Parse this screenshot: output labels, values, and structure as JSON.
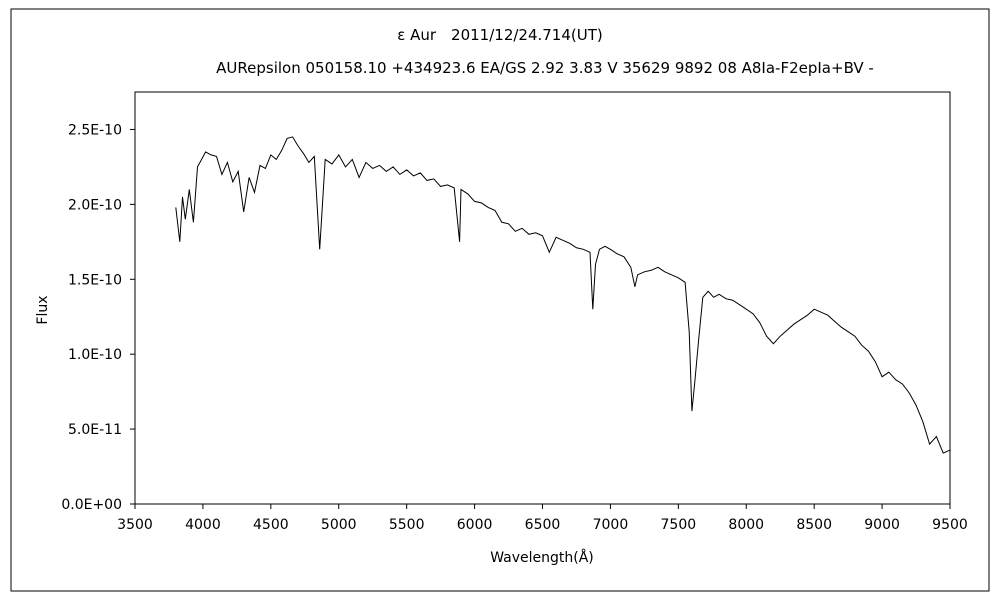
{
  "chart_data": {
    "type": "line",
    "title": "ε Aur　2011/12/24.714(UT)",
    "subtitle": "AURepsilon 050158.10 +434923.6 EA/GS 2.92 3.83 V 35629 9892 08 A8Ia-F2epIa+BV -",
    "xlabel": "Wavelength(Å)",
    "ylabel": "Flux",
    "xlim": [
      3500,
      9500
    ],
    "ylim": [
      0,
      2.75e-10
    ],
    "x_ticks": [
      3500,
      4000,
      4500,
      5000,
      5500,
      6000,
      6500,
      7000,
      7500,
      8000,
      8500,
      9000,
      9500
    ],
    "x_tick_labels": [
      "3500",
      "4000",
      "4500",
      "5000",
      "5500",
      "6000",
      "6500",
      "7000",
      "7500",
      "8000",
      "8500",
      "9000",
      "9500"
    ],
    "y_ticks": [
      0,
      5e-11,
      1e-10,
      1.5e-10,
      2e-10,
      2.5e-10
    ],
    "y_tick_labels": [
      "0.0E+00",
      "5.0E-11",
      "1.0E-10",
      "1.5E-10",
      "2.0E-10",
      "2.5E-10"
    ],
    "grid": false,
    "line_color": "#000000",
    "series": [
      {
        "x": [
          3800,
          3830,
          3850,
          3870,
          3900,
          3930,
          3960,
          3990,
          4020,
          4060,
          4100,
          4140,
          4180,
          4220,
          4260,
          4300,
          4340,
          4380,
          4420,
          4460,
          4500,
          4540,
          4580,
          4620,
          4660,
          4700,
          4740,
          4780,
          4820,
          4860,
          4900,
          4950,
          5000,
          5050,
          5100,
          5150,
          5200,
          5250,
          5300,
          5350,
          5400,
          5450,
          5500,
          5550,
          5600,
          5650,
          5700,
          5750,
          5800,
          5850,
          5890,
          5900,
          5950,
          6000,
          6050,
          6100,
          6150,
          6200,
          6250,
          6300,
          6350,
          6400,
          6450,
          6500,
          6550,
          6600,
          6650,
          6700,
          6750,
          6800,
          6850,
          6870,
          6890,
          6920,
          6960,
          7000,
          7050,
          7100,
          7150,
          7180,
          7200,
          7250,
          7300,
          7350,
          7400,
          7450,
          7500,
          7550,
          7580,
          7600,
          7620,
          7650,
          7680,
          7720,
          7760,
          7800,
          7850,
          7900,
          7950,
          8000,
          8050,
          8100,
          8150,
          8200,
          8250,
          8300,
          8350,
          8400,
          8450,
          8500,
          8550,
          8600,
          8650,
          8700,
          8750,
          8800,
          8850,
          8900,
          8950,
          9000,
          9050,
          9100,
          9150,
          9200,
          9250,
          9300,
          9350,
          9400,
          9450,
          9500
        ],
        "values": [
          1.98e-10,
          1.75e-10,
          2.05e-10,
          1.9e-10,
          2.1e-10,
          1.88e-10,
          2.25e-10,
          2.3e-10,
          2.35e-10,
          2.33e-10,
          2.32e-10,
          2.2e-10,
          2.28e-10,
          2.15e-10,
          2.22e-10,
          1.95e-10,
          2.18e-10,
          2.08e-10,
          2.26e-10,
          2.24e-10,
          2.33e-10,
          2.3e-10,
          2.36e-10,
          2.44e-10,
          2.45e-10,
          2.39e-10,
          2.34e-10,
          2.28e-10,
          2.32e-10,
          1.7e-10,
          2.3e-10,
          2.27e-10,
          2.33e-10,
          2.25e-10,
          2.3e-10,
          2.18e-10,
          2.28e-10,
          2.24e-10,
          2.26e-10,
          2.22e-10,
          2.25e-10,
          2.2e-10,
          2.23e-10,
          2.19e-10,
          2.21e-10,
          2.16e-10,
          2.17e-10,
          2.12e-10,
          2.13e-10,
          2.11e-10,
          1.75e-10,
          2.1e-10,
          2.07e-10,
          2.02e-10,
          2.01e-10,
          1.98e-10,
          1.96e-10,
          1.88e-10,
          1.87e-10,
          1.82e-10,
          1.84e-10,
          1.8e-10,
          1.81e-10,
          1.79e-10,
          1.68e-10,
          1.78e-10,
          1.76e-10,
          1.74e-10,
          1.71e-10,
          1.7e-10,
          1.68e-10,
          1.3e-10,
          1.6e-10,
          1.7e-10,
          1.72e-10,
          1.7e-10,
          1.67e-10,
          1.65e-10,
          1.58e-10,
          1.45e-10,
          1.53e-10,
          1.55e-10,
          1.56e-10,
          1.58e-10,
          1.55e-10,
          1.53e-10,
          1.51e-10,
          1.48e-10,
          1.15e-10,
          6.2e-11,
          8e-11,
          1.1e-10,
          1.38e-10,
          1.42e-10,
          1.38e-10,
          1.4e-10,
          1.37e-10,
          1.36e-10,
          1.33e-10,
          1.3e-10,
          1.27e-10,
          1.21e-10,
          1.12e-10,
          1.07e-10,
          1.12e-10,
          1.16e-10,
          1.2e-10,
          1.23e-10,
          1.26e-10,
          1.3e-10,
          1.28e-10,
          1.26e-10,
          1.22e-10,
          1.18e-10,
          1.15e-10,
          1.12e-10,
          1.06e-10,
          1.02e-10,
          9.5e-11,
          8.5e-11,
          8.8e-11,
          8.3e-11,
          8e-11,
          7.4e-11,
          6.6e-11,
          5.5e-11,
          4e-11,
          4.5e-11,
          3.4e-11,
          3.6e-11
        ]
      }
    ]
  }
}
